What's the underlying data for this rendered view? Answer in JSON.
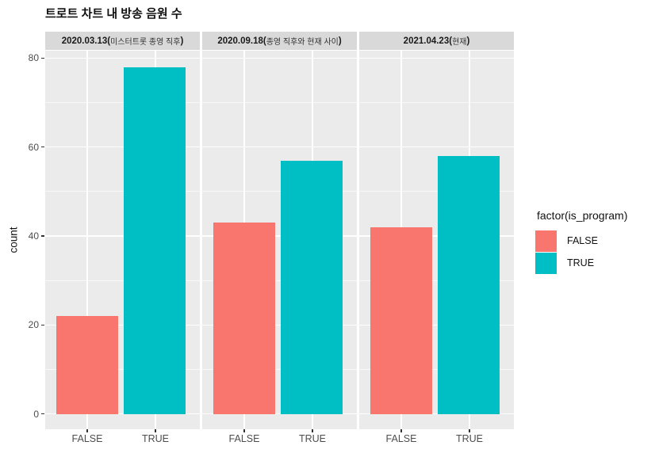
{
  "title": "트로트 차트 내 방송 음원 수",
  "chart_data": {
    "type": "bar",
    "title": "트로트 차트 내 방송 음원 수",
    "xlabel": "",
    "ylabel": "count",
    "ylim": [
      0,
      80
    ],
    "y_major_ticks": [
      0,
      20,
      40,
      60,
      80
    ],
    "y_minor_ticks": [
      10,
      30,
      50,
      70
    ],
    "categories": [
      "FALSE",
      "TRUE"
    ],
    "series": [
      {
        "name": "FALSE",
        "color": "#F8766D",
        "values": [
          22,
          43,
          42
        ]
      },
      {
        "name": "TRUE",
        "color": "#00BFC4",
        "values": [
          78,
          57,
          58
        ]
      }
    ],
    "facets": [
      {
        "label": "2020.03.13(미스터트롯 종영 직후)",
        "date": "2020.03.13",
        "note": "미스터트롯 종영 직후"
      },
      {
        "label": "2020.09.18(종영 직후와 현재 사이)",
        "date": "2020.09.18",
        "note": "종영 직후와 현재 사이"
      },
      {
        "label": "2021.04.23(현재)",
        "date": "2021.04.23",
        "note": "현재"
      }
    ],
    "legend_title": "factor(is_program)",
    "legend_position": "right",
    "grid": true,
    "colors": {
      "panel_bg": "#EBEBEB",
      "strip_bg": "#D9D9D9",
      "gridline": "#FFFFFF",
      "tick_label": "#4D4D4D"
    }
  }
}
